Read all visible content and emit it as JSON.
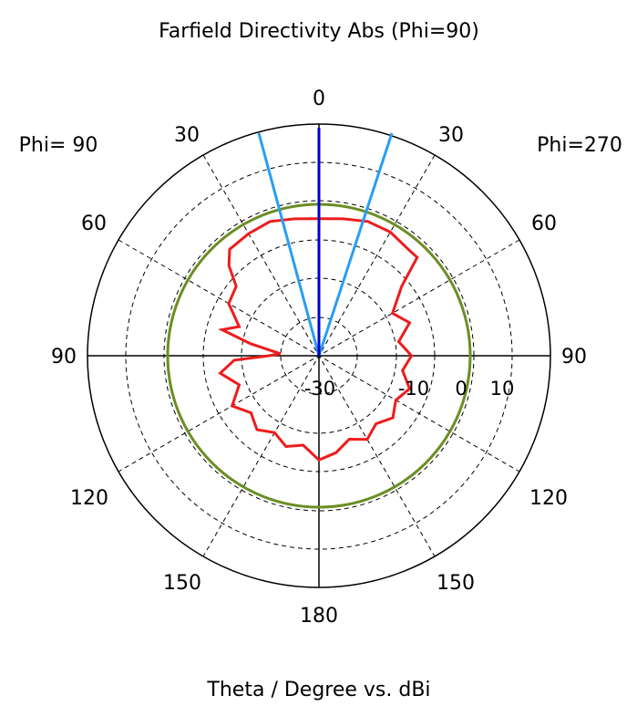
{
  "chart_data": {
    "type": "polar",
    "title": "Farfield Directivity Abs (Phi=90)",
    "xlabel": "Theta / Degree vs. dBi",
    "left_label": "Phi= 90",
    "right_label": "Phi=270",
    "angle_labels": {
      "top": "0",
      "upper_left_30": "30",
      "upper_right_30": "30",
      "left_60": "60",
      "right_60": "60",
      "left_90": "90",
      "right_90": "90",
      "left_120": "120",
      "right_120": "120",
      "left_150": "150",
      "right_150": "150",
      "bottom": "180"
    },
    "radial_ticks": [
      {
        "value": -30,
        "label": "-30"
      },
      {
        "value": -10,
        "label": "-10"
      },
      {
        "value": 0,
        "label": "0"
      },
      {
        "value": 10,
        "label": "10"
      }
    ],
    "radial_range": [
      -40,
      20
    ],
    "main_lobe_direction_deg": 0,
    "beamwidth_3db_deg": [
      -17,
      17
    ],
    "reference_level_dbi": 0,
    "colors": {
      "pattern": "#ee1c1c",
      "main_lobe": "#0000cc",
      "beamwidth": "#2a9df4",
      "reference": "#6b8e23",
      "axes": "#000000",
      "grid": "#000000"
    },
    "series": [
      {
        "points": [
          [
            -180,
            -13
          ],
          [
            -170,
            -14.5
          ],
          [
            -160,
            -17
          ],
          [
            -150,
            -15
          ],
          [
            -140,
            -17
          ],
          [
            -130,
            -15
          ],
          [
            -120,
            -17
          ],
          [
            -110,
            -15
          ],
          [
            -100,
            -18
          ],
          [
            -90,
            -16
          ],
          [
            -80,
            -19
          ],
          [
            -70,
            -15
          ],
          [
            -60,
            -18
          ],
          [
            -50,
            -12
          ],
          [
            -45,
            -4
          ],
          [
            -40,
            -4
          ],
          [
            -30,
            -3
          ],
          [
            -20,
            -3
          ],
          [
            -10,
            -4
          ],
          [
            0,
            -4.5
          ],
          [
            10,
            -4
          ],
          [
            20,
            -3
          ],
          [
            30,
            -3.5
          ],
          [
            40,
            -4
          ],
          [
            45,
            -7
          ],
          [
            50,
            -12
          ],
          [
            60,
            -13
          ],
          [
            70,
            -18
          ],
          [
            75,
            -14
          ],
          [
            80,
            -22
          ],
          [
            87,
            -30
          ],
          [
            90,
            -27
          ],
          [
            93,
            -18
          ],
          [
            100,
            -14
          ],
          [
            110,
            -18
          ],
          [
            120,
            -14
          ],
          [
            130,
            -17
          ],
          [
            140,
            -15
          ],
          [
            150,
            -17
          ],
          [
            160,
            -15
          ],
          [
            170,
            -16.5
          ],
          [
            180,
            -13
          ]
        ]
      }
    ]
  }
}
